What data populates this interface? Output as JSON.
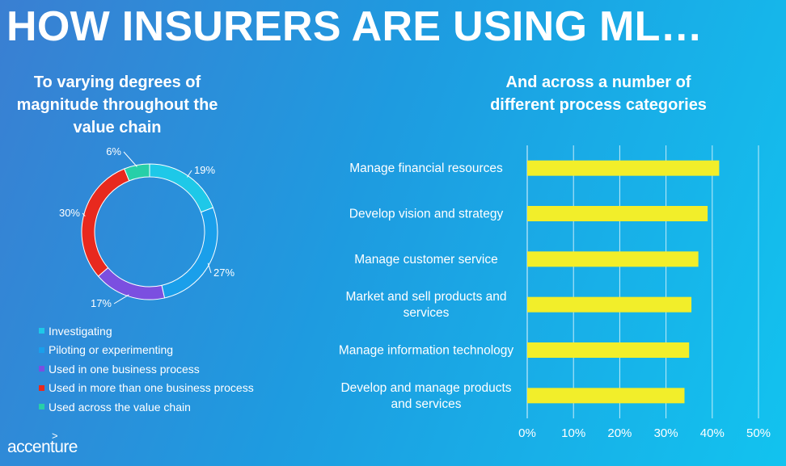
{
  "header": {
    "title": "HOW INSURERS ARE USING ML…"
  },
  "left_panel": {
    "title": "To varying degrees of magnitude throughout the value chain"
  },
  "right_panel": {
    "title": "And across a number of different process categories"
  },
  "brand": {
    "logo_text": "accenture",
    "logo_mark": ">"
  },
  "chart_data": [
    {
      "type": "pie",
      "variant": "donut",
      "slices": [
        {
          "label": "Investigating",
          "value": 19,
          "value_label": "19%",
          "color": "#1ec8e8"
        },
        {
          "label": "Piloting or experimenting",
          "value": 27,
          "value_label": "27%",
          "color": "#1a9fea"
        },
        {
          "label": "Used in one business process",
          "value": 17,
          "value_label": "17%",
          "color": "#7b4fe0"
        },
        {
          "label": "Used in more than one business process",
          "value": 30,
          "value_label": "30%",
          "color": "#e8291e"
        },
        {
          "label": "Used across the value chain",
          "value": 6,
          "value_label": "6%",
          "color": "#27cfa8"
        }
      ],
      "legend_position": "bottom-left"
    },
    {
      "type": "bar",
      "orientation": "horizontal",
      "categories": [
        "Manage financial resources",
        "Develop vision and strategy",
        "Manage customer service",
        "Market and sell products and services",
        "Manage information technology",
        "Develop and manage products and services"
      ],
      "category_lines": [
        [
          "Manage financial resources"
        ],
        [
          "Develop vision and strategy"
        ],
        [
          "Manage customer service"
        ],
        [
          "Market and sell products and",
          "services"
        ],
        [
          "Manage information technology"
        ],
        [
          "Develop and manage products",
          "and services"
        ]
      ],
      "values": [
        41.5,
        39,
        37,
        35.5,
        35,
        34
      ],
      "xlim": [
        0,
        50
      ],
      "xticks": [
        0,
        10,
        20,
        30,
        40,
        50
      ],
      "xtick_labels": [
        "0%",
        "10%",
        "20%",
        "30%",
        "40%",
        "50%"
      ],
      "bar_color": "#f2ee2a",
      "grid": true
    }
  ]
}
